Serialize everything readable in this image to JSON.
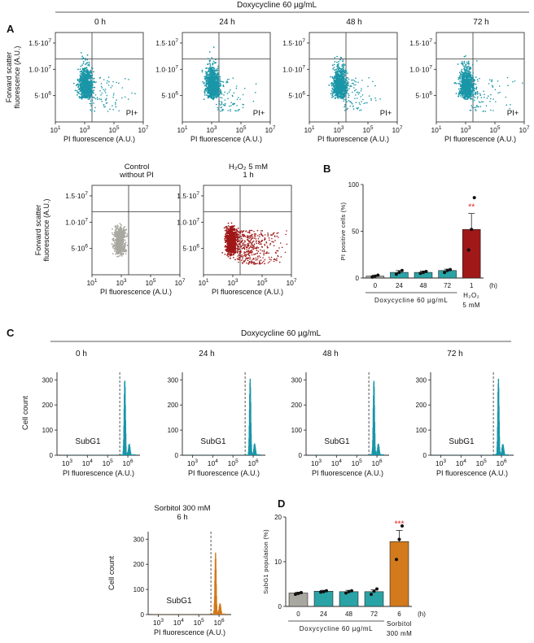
{
  "figure": {
    "dox_header": "Doxycycline 60 µg/mL",
    "panel_labels": [
      "A",
      "B",
      "C",
      "D"
    ],
    "pi_plus": "PI+",
    "subg1": "SubG1",
    "hours_unit": "(h)"
  },
  "colors": {
    "teal": "#1a96a8",
    "teal_bar": "#2aa3a6",
    "grey": "#a8a8a0",
    "dark_red": "#a01818",
    "orange": "#d27a1c",
    "sig_red": "#e01010",
    "axis": "#222222"
  },
  "icons": {
    "star": "★"
  },
  "chart_data": [
    {
      "id": "A_scatter_dox",
      "type": "scatter",
      "panel": "A",
      "plots": [
        {
          "title": "0 h",
          "color": "teal",
          "density_top": [
            300000,
            8000000,
            9000000
          ]
        },
        {
          "title": "24 h",
          "color": "teal",
          "density_top": [
            300000,
            8000000,
            9000000
          ]
        },
        {
          "title": "48 h",
          "color": "teal",
          "density_top": [
            300000,
            8000000,
            9000000
          ]
        },
        {
          "title": "72 h",
          "color": "teal",
          "density_top": [
            300000,
            8000000,
            9000000
          ]
        }
      ],
      "xlabel": "PI fluorescence (A.U.)",
      "ylabel": [
        "Forward scatter",
        "fluorescence (A.U.)"
      ],
      "x_ticks": [
        "10¹",
        "10³",
        "10⁵",
        "10⁷"
      ],
      "x_ticks_visible_log": [
        1,
        3,
        5,
        7
      ],
      "xlim_log": [
        1,
        7
      ],
      "y_ticks": [
        "5·10⁶",
        "1.0·10⁷",
        "1.5·10⁷"
      ],
      "y_tick_values": [
        5000000,
        10000000,
        15000000
      ],
      "ylim": [
        0,
        17000000
      ],
      "gate_x_log": 3.5,
      "gate_y": 12000000,
      "quadrant_label": "PI+"
    },
    {
      "id": "A_scatter_controls",
      "type": "scatter",
      "panel": "A",
      "plots": [
        {
          "title": "Control\nwithout PI",
          "color": "grey"
        },
        {
          "title": "H₂O₂ 5 mM\n1 h",
          "color": "dark_red"
        }
      ],
      "xlabel": "PI fluorescence (A.U.)",
      "ylabel": [
        "Forward scatter",
        "fluorescence (A.U.)"
      ],
      "x_ticks": [
        "10¹",
        "10³",
        "10⁵",
        "10⁷"
      ],
      "y_ticks": [
        "5·10⁶",
        "1.0·10⁷",
        "1.5·10⁷"
      ],
      "y_tick_values": [
        5000000,
        10000000,
        15000000
      ],
      "ylim": [
        0,
        17000000
      ],
      "gate_x_log": 3.5,
      "gate_y": 12000000
    },
    {
      "id": "B_bar",
      "type": "bar",
      "panel": "B",
      "categories": [
        "0",
        "24",
        "48",
        "72",
        "1"
      ],
      "values": [
        2,
        6,
        6,
        8,
        52
      ],
      "errors": [
        1,
        2,
        1.5,
        1.5,
        17
      ],
      "points": [
        [
          1,
          2,
          3
        ],
        [
          4,
          6,
          8
        ],
        [
          5,
          6,
          7
        ],
        [
          6,
          8,
          9
        ],
        [
          30,
          52,
          86
        ]
      ],
      "colors": [
        "grey",
        "teal_bar",
        "teal_bar",
        "teal_bar",
        "dark_red"
      ],
      "significance": [
        null,
        null,
        null,
        null,
        "**"
      ],
      "ylabel": "PI positive cells (%)",
      "ylim": [
        0,
        100
      ],
      "y_ticks": [
        0,
        50,
        100
      ],
      "group_label": "Doxycycline 60 µg/mL",
      "extra_label": [
        "H₂O₂",
        "5 mM"
      ],
      "unit": "(h)"
    },
    {
      "id": "C_hist_dox",
      "type": "histogram",
      "panel": "C",
      "plots": [
        {
          "title": "0 h",
          "color": "teal"
        },
        {
          "title": "24 h",
          "color": "teal"
        },
        {
          "title": "48 h",
          "color": "teal"
        },
        {
          "title": "72 h",
          "color": "teal"
        }
      ],
      "ylabel": "Cell count",
      "xlabel": "PI fluorescence (A.U.)",
      "y_ticks": [
        0,
        100,
        200,
        300
      ],
      "ylim": [
        0,
        330
      ],
      "x_ticks": [
        "10³",
        "10⁴",
        "10⁵",
        "10⁶"
      ],
      "x_tick_logs": [
        3,
        4,
        5,
        6
      ],
      "xlim_log": [
        2.5,
        6.6
      ],
      "gate_log": 5.6,
      "peak_log": 5.82,
      "peak_count": 300,
      "region_label": "SubG1"
    },
    {
      "id": "C_hist_sorbitol",
      "type": "histogram",
      "panel": "C",
      "plots": [
        {
          "title": "Sorbitol 300 mM\n6 h",
          "color": "orange"
        }
      ],
      "ylabel": "Cell count",
      "xlabel": "PI fluorescence (A.U.)",
      "y_ticks": [
        0,
        100,
        200,
        300
      ],
      "ylim": [
        0,
        330
      ],
      "x_ticks": [
        "10³",
        "10⁴",
        "10⁵",
        "10⁶"
      ],
      "x_tick_logs": [
        3,
        4,
        5,
        6
      ],
      "xlim_log": [
        2.5,
        6.6
      ],
      "gate_log": 5.6,
      "peak_log": 5.8,
      "peak_count": 240,
      "region_label": "SubG1"
    },
    {
      "id": "D_bar",
      "type": "bar",
      "panel": "D",
      "categories": [
        "0",
        "24",
        "48",
        "72",
        "6"
      ],
      "values": [
        3,
        3.4,
        3.3,
        3.3,
        14.5
      ],
      "errors": [
        0.2,
        0.2,
        0.3,
        0.4,
        2.5
      ],
      "points": [
        [
          2.7,
          2.9,
          3.1
        ],
        [
          3.2,
          3.3,
          3.5
        ],
        [
          3,
          3.3,
          3.5
        ],
        [
          2.7,
          3.4,
          3.9
        ],
        [
          10.5,
          15,
          18
        ]
      ],
      "colors": [
        "grey",
        "teal_bar",
        "teal_bar",
        "teal_bar",
        "orange"
      ],
      "significance": [
        null,
        null,
        null,
        null,
        "***"
      ],
      "ylabel": "SubG1 population (%)",
      "ylim": [
        0,
        20
      ],
      "y_ticks": [
        0,
        10,
        20
      ],
      "group_label": "Doxycycline 60 µg/mL",
      "extra_label": [
        "Sorbitol",
        "300 mM"
      ],
      "unit": "(h)"
    }
  ]
}
